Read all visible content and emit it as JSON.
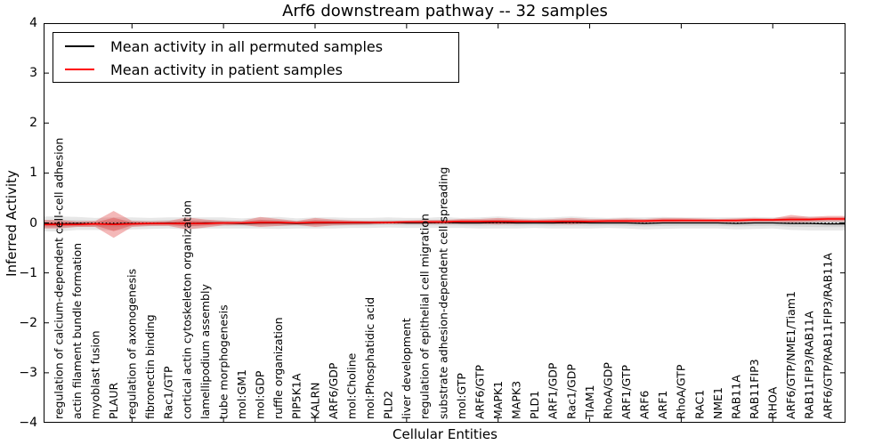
{
  "figure": {
    "background": "#ffffff"
  },
  "chart_data": {
    "type": "line",
    "title": "Arf6 downstream pathway -- 32 samples",
    "xlabel": "Cellular Entities",
    "ylabel": "Inferred Activity",
    "ylim": [
      -4,
      4
    ],
    "yticks": [
      4,
      3,
      2,
      1,
      0,
      -1,
      -2,
      -3,
      -4
    ],
    "xticks_entity_positions": [
      5,
      10,
      15,
      20,
      25,
      30,
      35,
      40
    ],
    "grid": false,
    "zero_line": {
      "y": 0,
      "style": "dotted",
      "color": "#000000"
    },
    "legend": {
      "position": "upper left",
      "entries": [
        {
          "label": "Mean activity in all permuted samples",
          "color": "#000000"
        },
        {
          "label": "Mean activity in patient samples",
          "color": "#ff0000"
        }
      ]
    },
    "categories": [
      "regulation of calcium-dependent cell-cell adhesion",
      "actin filament bundle formation",
      "myoblast fusion",
      "PLAUR",
      "regulation of axonogenesis",
      "fibronectin binding",
      "Rac1/GTP",
      "cortical actin cytoskeleton organization",
      "lamellipodium assembly",
      "tube morphogenesis",
      "mol:GM1",
      "mol:GDP",
      "ruffle organization",
      "PIP5K1A",
      "KALRN",
      "ARF6/GDP",
      "mol:Choline",
      "mol:Phosphatidic acid",
      "PLD2",
      "liver development",
      "regulation of epithelial cell migration",
      "substrate adhesion-dependent cell spreading",
      "mol:GTP",
      "ARF6/GTP",
      "MAPK1",
      "MAPK3",
      "PLD1",
      "ARF1/GDP",
      "Rac1/GDP",
      "TIAM1",
      "RhoA/GDP",
      "ARF1/GTP",
      "ARF6",
      "ARF1",
      "RhoA/GTP",
      "RAC1",
      "NME1",
      "RAB11A",
      "RAB11FIP3",
      "RHOA",
      "ARF6/GTP/NME1/Tiam1",
      "RAB11FIP3/RAB11A",
      "ARF6/GTP/RAB11FIP3/RAB11A"
    ],
    "series": [
      {
        "name": "Mean activity in all permuted samples",
        "color": "#000000",
        "band_color": "rgba(70,70,70,0.13)",
        "mean": [
          -0.02,
          -0.01,
          -0.02,
          -0.02,
          -0.01,
          -0.01,
          0,
          -0.01,
          0,
          0,
          -0.01,
          0,
          0,
          -0.01,
          0,
          0,
          0,
          0,
          0.01,
          0,
          0,
          0.01,
          0,
          0,
          0.01,
          0,
          0,
          0,
          0.01,
          0,
          0,
          0,
          -0.01,
          0,
          0,
          0,
          0,
          -0.01,
          0,
          0,
          -0.01,
          -0.01,
          -0.02
        ],
        "band_halfwidth": [
          0.15,
          0.13,
          0.12,
          0.13,
          0.12,
          0.11,
          0.11,
          0.12,
          0.11,
          0.11,
          0.1,
          0.11,
          0.12,
          0.1,
          0.11,
          0.11,
          0.1,
          0.1,
          0.1,
          0.1,
          0.1,
          0.11,
          0.1,
          0.11,
          0.12,
          0.11,
          0.1,
          0.11,
          0.12,
          0.11,
          0.1,
          0.11,
          0.12,
          0.12,
          0.11,
          0.11,
          0.11,
          0.12,
          0.12,
          0.11,
          0.13,
          0.14,
          0.13
        ]
      },
      {
        "name": "Mean activity in patient samples",
        "color": "#ff0000",
        "band_color": "rgba(222,40,40,0.33)",
        "mean": [
          -0.03,
          -0.03,
          -0.02,
          -0.03,
          -0.02,
          -0.01,
          -0.01,
          -0.01,
          -0.01,
          0,
          0,
          0.01,
          0.01,
          0,
          0.01,
          0.01,
          0.01,
          0.01,
          0.01,
          0.02,
          0.02,
          0.02,
          0.03,
          0.03,
          0.03,
          0.03,
          0.03,
          0.03,
          0.03,
          0.03,
          0.04,
          0.04,
          0.04,
          0.05,
          0.05,
          0.05,
          0.05,
          0.05,
          0.06,
          0.06,
          0.07,
          0.07,
          0.08
        ],
        "upper": [
          0.06,
          0.03,
          0.04,
          0.24,
          0.04,
          0.03,
          0.04,
          0.11,
          0.07,
          0.04,
          0.04,
          0.12,
          0.08,
          0.04,
          0.1,
          0.07,
          0.05,
          0.04,
          0.04,
          0.05,
          0.06,
          0.06,
          0.08,
          0.08,
          0.1,
          0.08,
          0.07,
          0.08,
          0.1,
          0.08,
          0.08,
          0.09,
          0.08,
          0.1,
          0.1,
          0.09,
          0.08,
          0.09,
          0.1,
          0.09,
          0.16,
          0.12,
          0.14
        ],
        "lower": [
          -0.11,
          -0.08,
          -0.08,
          -0.3,
          -0.08,
          -0.06,
          -0.06,
          -0.13,
          -0.09,
          -0.05,
          -0.04,
          -0.08,
          -0.06,
          -0.04,
          -0.08,
          -0.05,
          -0.04,
          -0.03,
          -0.02,
          -0.02,
          -0.02,
          -0.02,
          -0.02,
          -0.02,
          -0.03,
          -0.02,
          -0.01,
          -0.02,
          -0.03,
          -0.01,
          -0.01,
          -0.01,
          0,
          0,
          0.01,
          0.01,
          0.01,
          0.01,
          0.02,
          0.02,
          0.01,
          0.02,
          0.03
        ]
      }
    ]
  }
}
